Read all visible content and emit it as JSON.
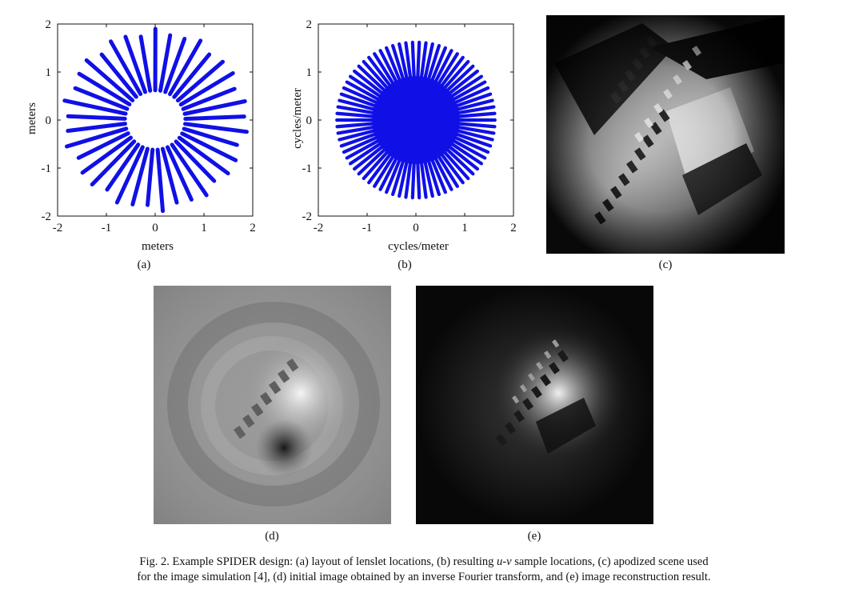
{
  "figure": {
    "caption": {
      "line1_a": "Fig. 2. Example SPIDER design: (a) layout of lenslet locations, (b) resulting ",
      "line1_uv": "u-v",
      "line1_b": " sample locations, (c) apodized scene used",
      "line2": "for the image simulation [4], (d) initial image obtained by an inverse Fourier transform, and (e) image reconstruction result."
    },
    "subfigure_labels": [
      "(a)",
      "(b)",
      "(c)",
      "(d)",
      "(e)"
    ],
    "colors": {
      "marker_blue": "#1010e6",
      "photo_dark": "#0b0b0b",
      "photo_mid": "#8a8a8a"
    }
  },
  "chart_data": [
    {
      "type": "scatter",
      "title": "",
      "xlabel": "meters",
      "ylabel": "meters",
      "xlim": [
        -2,
        2
      ],
      "ylim": [
        -2,
        2
      ],
      "xticks": [
        "-2",
        "-1",
        "0",
        "1",
        "2"
      ],
      "yticks": [
        "-2",
        "-1",
        "0",
        "1",
        "2"
      ],
      "series": [
        {
          "description_values": {
            "pattern": "radial spokes",
            "spoke_count": 37,
            "inner_radius": 0.62,
            "outer_radius_range": [
              1.75,
              1.9
            ]
          }
        }
      ]
    },
    {
      "type": "scatter",
      "title": "",
      "xlabel": "cycles/meter",
      "ylabel": "cycles/meter",
      "xlim": [
        -2,
        2
      ],
      "ylim": [
        -2,
        2
      ],
      "xticks": [
        "-2",
        "-1",
        "0",
        "1",
        "2"
      ],
      "yticks": [
        "-2",
        "-1",
        "0",
        "1",
        "2"
      ],
      "series": [
        {
          "description_values": {
            "pattern": "dense radial spokes",
            "spoke_count": 74,
            "inner_radius": 0,
            "outer_radius": 1.62
          }
        }
      ]
    }
  ]
}
